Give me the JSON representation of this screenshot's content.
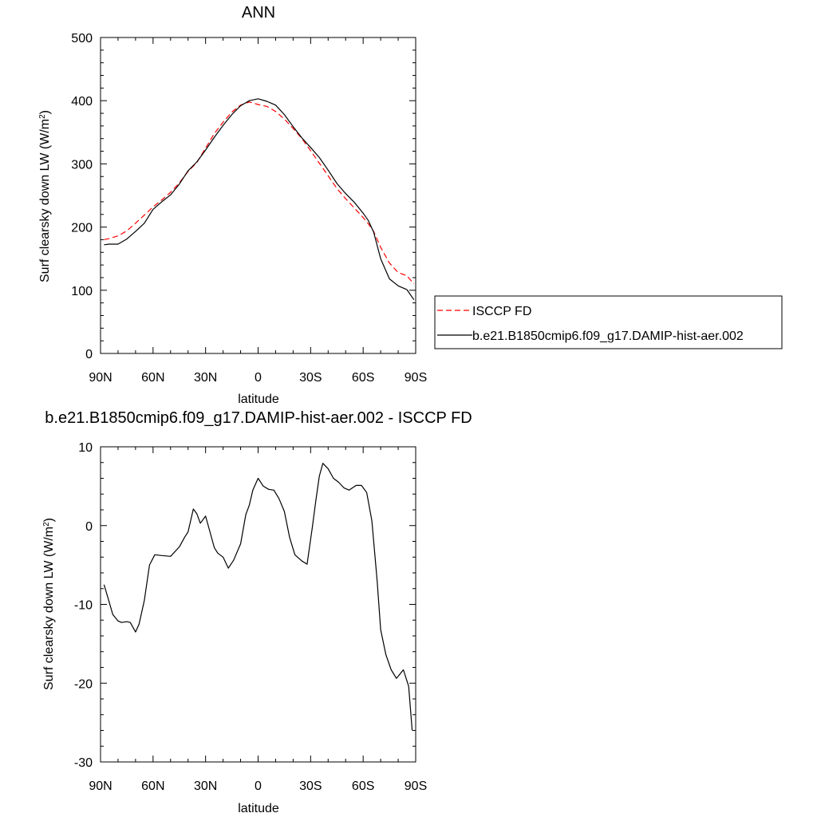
{
  "chart_data": [
    {
      "type": "line",
      "title": "ANN",
      "xlabel": "latitude",
      "ylabel": "Surf clearsky down LW (W/m",
      "ylabel_sup": "2",
      "ylabel_close": ")",
      "xlim": [
        90,
        -90
      ],
      "ylim": [
        0,
        500
      ],
      "x_ticks": [
        90,
        60,
        30,
        0,
        -30,
        -60,
        -90
      ],
      "x_tick_labels": [
        "90N",
        "60N",
        "30N",
        "0",
        "30S",
        "60S",
        "90S"
      ],
      "y_ticks": [
        0,
        100,
        200,
        300,
        400,
        500
      ],
      "y_tick_labels": [
        "0",
        "100",
        "200",
        "300",
        "400",
        "500"
      ],
      "legend_position": "right",
      "series": [
        {
          "name": "ISCCP FD",
          "color": "#ff0000",
          "style": "dashed",
          "x": [
            88,
            85,
            80,
            75,
            70,
            65,
            60,
            55,
            50,
            45,
            40,
            35,
            30,
            25,
            20,
            15,
            10,
            5,
            0,
            -5,
            -10,
            -15,
            -20,
            -25,
            -30,
            -35,
            -40,
            -45,
            -50,
            -55,
            -60,
            -63,
            -66,
            -70,
            -75,
            -80,
            -85,
            -89
          ],
          "y": [
            180,
            182,
            186,
            194,
            206,
            219,
            232,
            243,
            255,
            270,
            288,
            302,
            325,
            348,
            366,
            382,
            393,
            398,
            394,
            391,
            383,
            371,
            356,
            340,
            321,
            301,
            281,
            261,
            245,
            230,
            215,
            205,
            193,
            168,
            143,
            128,
            123,
            110
          ]
        },
        {
          "name": "b.e21.B1850cmip6.f09_g17.DAMIP-hist-aer.002",
          "color": "#000000",
          "style": "solid",
          "x": [
            88,
            85,
            80,
            75,
            70,
            65,
            60,
            55,
            50,
            45,
            40,
            35,
            30,
            25,
            20,
            15,
            10,
            5,
            0,
            -5,
            -10,
            -15,
            -20,
            -25,
            -30,
            -35,
            -40,
            -45,
            -50,
            -55,
            -60,
            -63,
            -66,
            -70,
            -75,
            -80,
            -85,
            -89
          ],
          "y": [
            172,
            173,
            173,
            181,
            193,
            206,
            228,
            240,
            251,
            268,
            289,
            303,
            322,
            342,
            361,
            378,
            392,
            400,
            403,
            399,
            393,
            378,
            359,
            341,
            326,
            310,
            290,
            269,
            253,
            239,
            222,
            210,
            192,
            150,
            118,
            107,
            101,
            85
          ]
        }
      ]
    },
    {
      "type": "line",
      "title": "b.e21.B1850cmip6.f09_g17.DAMIP-hist-aer.002 - ISCCP FD",
      "xlabel": "latitude",
      "ylabel": "Surf clearsky down LW (W/m",
      "ylabel_sup": "2",
      "ylabel_close": ")",
      "xlim": [
        90,
        -90
      ],
      "ylim": [
        -30,
        10
      ],
      "x_ticks": [
        90,
        60,
        30,
        0,
        -30,
        -60,
        -90
      ],
      "x_tick_labels": [
        "90N",
        "60N",
        "30N",
        "0",
        "30S",
        "60S",
        "90S"
      ],
      "y_ticks": [
        -30,
        -20,
        -10,
        0,
        10
      ],
      "y_tick_labels": [
        "-30",
        "-20",
        "-10",
        "0",
        "10"
      ],
      "series": [
        {
          "color": "#000000",
          "style": "solid",
          "x": [
            88,
            86,
            83,
            80,
            78,
            75,
            73,
            70,
            68,
            65,
            62,
            59,
            55,
            50,
            45,
            42,
            40,
            37,
            35,
            33,
            30,
            25,
            23,
            20,
            17,
            14,
            10,
            7,
            5,
            3,
            0,
            -3,
            -6,
            -9,
            -12,
            -15,
            -18,
            -21,
            -25,
            -28,
            -31,
            -33,
            -35,
            -37,
            -40,
            -43,
            -46,
            -49,
            -52,
            -56,
            -59,
            -62,
            -65,
            -68,
            -70,
            -73,
            -76,
            -79,
            -83,
            -86,
            -88
          ],
          "y": [
            -7.5,
            -9,
            -11.3,
            -12.1,
            -12.3,
            -12.2,
            -12.3,
            -13.5,
            -12.5,
            -9.5,
            -5,
            -3.7,
            -3.8,
            -3.9,
            -2.7,
            -1.5,
            -0.8,
            2.1,
            1.5,
            0.3,
            1.2,
            -2.8,
            -3.5,
            -4,
            -5.4,
            -4.4,
            -2.3,
            1.4,
            2.6,
            4.5,
            6,
            5,
            4.6,
            4.5,
            3.4,
            1.8,
            -1.5,
            -3.7,
            -4.5,
            -4.9,
            -0.2,
            3.2,
            6.3,
            7.9,
            7.2,
            6,
            5.5,
            4.8,
            4.5,
            5.1,
            5.1,
            4.2,
            0.6,
            -7,
            -13.2,
            -16.4,
            -18.3,
            -19.4,
            -18.3,
            -20.4,
            -26
          ]
        }
      ]
    }
  ]
}
